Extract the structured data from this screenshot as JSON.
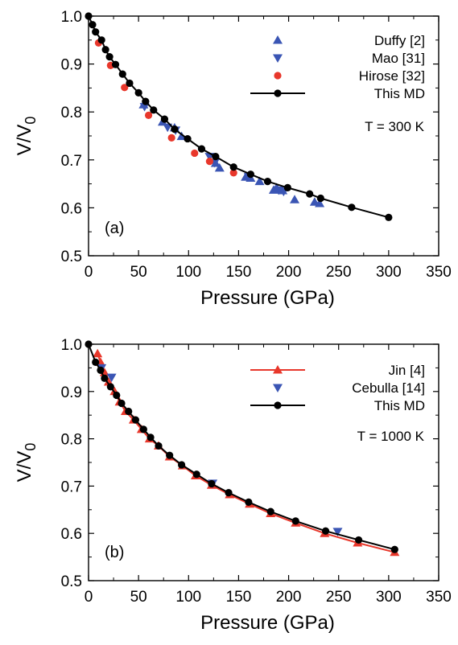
{
  "chart_data": [
    {
      "type": "scatter",
      "panel_label": "(a)",
      "annotation": "T = 300 K",
      "xlabel": "Pressure (GPa)",
      "ylabel": "V/V",
      "ylabel_sub": "0",
      "xlim": [
        0,
        350
      ],
      "ylim": [
        0.5,
        1.0
      ],
      "xticks": [
        "0",
        "50",
        "100",
        "150",
        "200",
        "250",
        "300",
        "350"
      ],
      "yticks": [
        "0.5",
        "0.6",
        "0.7",
        "0.8",
        "0.9",
        "1.0"
      ],
      "legend_position": "top-right",
      "series": [
        {
          "name": "Duffy [2]",
          "marker": "triangle-up",
          "color": "#3a55b4",
          "line": false,
          "points": [
            [
              55,
              0.815
            ],
            [
              74,
              0.779
            ],
            [
              86,
              0.767
            ],
            [
              93,
              0.749
            ],
            [
              127,
              0.693
            ],
            [
              131,
              0.683
            ],
            [
              157,
              0.664
            ],
            [
              162,
              0.662
            ],
            [
              171,
              0.655
            ],
            [
              185,
              0.637
            ],
            [
              188,
              0.642
            ],
            [
              194,
              0.636
            ],
            [
              206,
              0.617
            ],
            [
              226,
              0.612
            ],
            [
              231,
              0.609
            ]
          ]
        },
        {
          "name": "Mao [31]",
          "marker": "triangle-down",
          "color": "#3a55b4",
          "line": false,
          "points": [
            [
              56,
              0.811
            ],
            [
              79,
              0.768
            ],
            [
              87,
              0.762
            ],
            [
              121,
              0.707
            ],
            [
              126,
              0.694
            ],
            [
              160,
              0.665
            ],
            [
              190,
              0.637
            ],
            [
              195,
              0.634
            ]
          ]
        },
        {
          "name": "Hirose [32]",
          "marker": "circle",
          "color": "#e8372b",
          "line": false,
          "points": [
            [
              10,
              0.944
            ],
            [
              22,
              0.897
            ],
            [
              36,
              0.851
            ],
            [
              60,
              0.793
            ],
            [
              83,
              0.746
            ],
            [
              106,
              0.714
            ],
            [
              121,
              0.697
            ],
            [
              145,
              0.673
            ]
          ]
        },
        {
          "name": "This MD",
          "marker": "circle",
          "color": "#000000",
          "line": true,
          "points": [
            [
              0,
              1.0
            ],
            [
              4,
              0.982
            ],
            [
              7,
              0.967
            ],
            [
              13,
              0.95
            ],
            [
              17,
              0.93
            ],
            [
              21,
              0.915
            ],
            [
              27,
              0.899
            ],
            [
              34,
              0.879
            ],
            [
              41,
              0.86
            ],
            [
              50,
              0.84
            ],
            [
              57,
              0.822
            ],
            [
              65,
              0.804
            ],
            [
              76,
              0.785
            ],
            [
              86,
              0.764
            ],
            [
              99,
              0.744
            ],
            [
              113,
              0.723
            ],
            [
              127,
              0.707
            ],
            [
              145,
              0.685
            ],
            [
              162,
              0.67
            ],
            [
              179,
              0.655
            ],
            [
              199,
              0.642
            ],
            [
              221,
              0.629
            ],
            [
              232,
              0.62
            ],
            [
              263,
              0.601
            ],
            [
              300,
              0.58
            ]
          ]
        }
      ]
    },
    {
      "type": "scatter",
      "panel_label": "(b)",
      "annotation": "T = 1000 K",
      "xlabel": "Pressure (GPa)",
      "ylabel": "V/V",
      "ylabel_sub": "0",
      "xlim": [
        0,
        350
      ],
      "ylim": [
        0.5,
        1.0
      ],
      "xticks": [
        "0",
        "50",
        "100",
        "150",
        "200",
        "250",
        "300",
        "350"
      ],
      "yticks": [
        "0.5",
        "0.6",
        "0.7",
        "0.8",
        "0.9",
        "1.0"
      ],
      "legend_position": "top-right",
      "series": [
        {
          "name": "Jin [4]",
          "marker": "triangle-up",
          "color": "#e8372b",
          "line": true,
          "points": [
            [
              9,
              0.98
            ],
            [
              12,
              0.962
            ],
            [
              16,
              0.94
            ],
            [
              20,
              0.92
            ],
            [
              26,
              0.9
            ],
            [
              31,
              0.878
            ],
            [
              37,
              0.858
            ],
            [
              45,
              0.84
            ],
            [
              53,
              0.82
            ],
            [
              61,
              0.8
            ],
            [
              70,
              0.785
            ],
            [
              81,
              0.762
            ],
            [
              94,
              0.743
            ],
            [
              107,
              0.722
            ],
            [
              123,
              0.702
            ],
            [
              141,
              0.682
            ],
            [
              161,
              0.662
            ],
            [
              182,
              0.642
            ],
            [
              207,
              0.622
            ],
            [
              236,
              0.6
            ],
            [
              269,
              0.58
            ],
            [
              306,
              0.56
            ]
          ]
        },
        {
          "name": "Cebulla [14]",
          "marker": "triangle-down",
          "color": "#3a55b4",
          "line": false,
          "points": [
            [
              13,
              0.95
            ],
            [
              23,
              0.93
            ],
            [
              124,
              0.706
            ],
            [
              249,
              0.604
            ]
          ]
        },
        {
          "name": "This MD",
          "marker": "circle",
          "color": "#000000",
          "line": true,
          "points": [
            [
              0,
              1.0
            ],
            [
              7,
              0.962
            ],
            [
              12,
              0.945
            ],
            [
              16,
              0.928
            ],
            [
              22,
              0.91
            ],
            [
              28,
              0.892
            ],
            [
              33,
              0.875
            ],
            [
              40,
              0.858
            ],
            [
              47,
              0.84
            ],
            [
              55,
              0.82
            ],
            [
              62,
              0.803
            ],
            [
              70,
              0.785
            ],
            [
              81,
              0.765
            ],
            [
              93,
              0.745
            ],
            [
              108,
              0.725
            ],
            [
              123,
              0.705
            ],
            [
              140,
              0.686
            ],
            [
              160,
              0.666
            ],
            [
              182,
              0.646
            ],
            [
              207,
              0.626
            ],
            [
              237,
              0.605
            ],
            [
              270,
              0.586
            ],
            [
              306,
              0.566
            ]
          ]
        }
      ]
    }
  ]
}
